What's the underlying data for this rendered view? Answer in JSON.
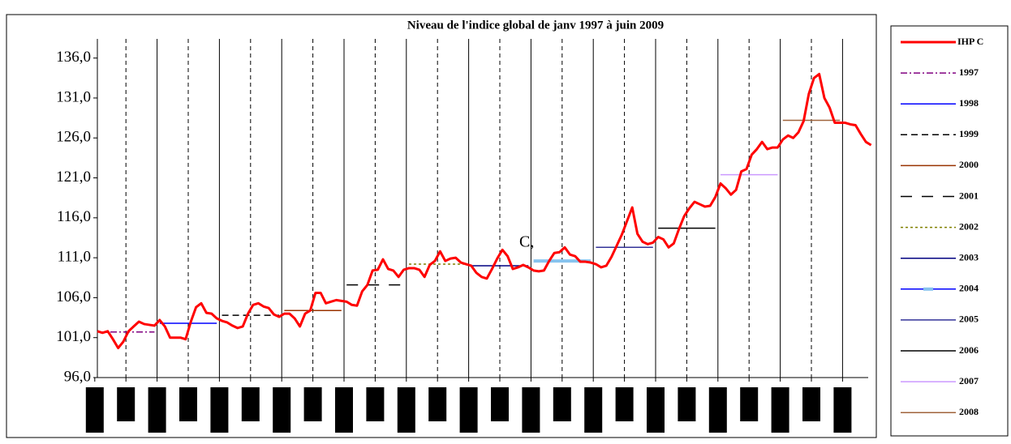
{
  "chart_data": {
    "type": "line",
    "title": "Niveau de l'indice global de janv 1997 à juin 2009",
    "annotation": "C,",
    "categories": [
      null,
      null,
      null,
      null,
      null,
      null,
      null,
      null,
      null,
      null,
      null,
      null,
      null,
      null,
      null,
      null,
      null,
      null,
      null,
      null,
      null,
      null,
      null,
      null,
      null,
      null,
      null,
      null,
      null,
      null,
      null,
      null,
      null,
      null,
      null,
      null,
      null,
      null,
      null,
      null,
      null,
      null,
      null,
      null,
      null,
      null,
      null,
      null,
      null,
      null,
      null,
      null,
      null,
      null,
      null,
      null,
      null,
      null,
      null,
      null,
      null,
      null,
      null,
      null,
      null,
      null,
      null,
      null,
      null,
      null,
      null,
      null,
      null,
      null,
      null,
      null,
      null,
      null,
      null,
      null,
      null,
      null,
      null,
      null,
      null,
      null,
      null,
      null,
      null,
      null,
      null,
      null,
      null,
      null,
      null,
      null,
      null,
      null,
      null,
      null,
      null,
      null,
      null,
      null,
      null,
      null,
      null,
      null,
      null,
      null,
      null,
      null,
      null,
      null,
      null,
      null,
      null,
      null,
      null,
      null,
      null,
      null,
      null,
      null,
      null,
      null,
      null,
      null,
      null,
      null,
      null,
      null,
      null,
      null,
      null,
      null,
      null,
      null,
      null,
      null,
      null,
      null,
      null,
      null,
      null,
      null,
      null,
      null,
      null,
      null
    ],
    "series": [
      {
        "name": "IHP C",
        "color": "#ff0000",
        "width": 3,
        "values": [
          101.8,
          101.6,
          101.8,
          100.8,
          99.7,
          100.5,
          101.8,
          102.4,
          103.0,
          102.7,
          102.6,
          102.5,
          103.2,
          102.4,
          101.0,
          101.0,
          101.0,
          100.8,
          103.0,
          104.8,
          105.3,
          104.1,
          104.0,
          103.4,
          103.1,
          102.9,
          102.5,
          102.2,
          102.4,
          104.0,
          105.1,
          105.3,
          104.9,
          104.7,
          103.9,
          103.6,
          104.0,
          104.0,
          103.4,
          102.4,
          104.0,
          104.4,
          106.6,
          106.6,
          105.3,
          105.5,
          105.7,
          105.6,
          105.5,
          105.1,
          105.0,
          106.8,
          107.6,
          109.4,
          109.5,
          110.8,
          109.6,
          109.4,
          108.6,
          109.5,
          109.7,
          109.7,
          109.5,
          108.6,
          110.1,
          110.6,
          111.8,
          110.6,
          110.9,
          111.0,
          110.4,
          110.2,
          110.0,
          109.1,
          108.6,
          108.4,
          109.6,
          110.9,
          112.0,
          111.2,
          109.6,
          109.8,
          110.1,
          109.8,
          109.4,
          109.3,
          109.4,
          110.6,
          111.6,
          111.7,
          112.3,
          111.4,
          111.2,
          110.5,
          110.5,
          110.4,
          110.2,
          109.8,
          110.0,
          111.1,
          112.5,
          113.9,
          115.6,
          117.3,
          114.0,
          113.0,
          112.7,
          112.9,
          113.6,
          113.3,
          112.3,
          112.8,
          114.6,
          116.2,
          117.2,
          118.0,
          117.7,
          117.4,
          117.5,
          118.6,
          120.3,
          119.7,
          118.9,
          119.5,
          121.8,
          122.1,
          123.9,
          124.6,
          125.5,
          124.6,
          124.8,
          124.8,
          125.8,
          126.3,
          126.0,
          126.7,
          128.1,
          131.5,
          133.5,
          134.0,
          131.0,
          129.8,
          127.9,
          127.9,
          127.9,
          127.7,
          127.6,
          126.5,
          125.5,
          125.1
        ]
      }
    ],
    "averages": [
      {
        "name": "1997",
        "color": "#800080",
        "dash": "8 3 2 3",
        "value": 101.7
      },
      {
        "name": "1998",
        "color": "#0000ff",
        "dash": "",
        "value": 102.8
      },
      {
        "name": "1999",
        "color": "#000000",
        "dash": "8 5",
        "value": 103.8
      },
      {
        "name": "2000",
        "color": "#993300",
        "dash": "",
        "value": 104.4
      },
      {
        "name": "2001",
        "color": "#000000",
        "dash": "14 12",
        "value": 107.6
      },
      {
        "name": "2002",
        "color": "#808000",
        "dash": "3 3",
        "value": 110.2
      },
      {
        "name": "2003",
        "color": "#000080",
        "dash": "",
        "value": 110.0
      },
      {
        "name": "2004",
        "color": "#87c3ee",
        "dash": "",
        "value": 110.6
      },
      {
        "name": "2005",
        "color": "#333399",
        "dash": "",
        "value": 112.3
      },
      {
        "name": "2006",
        "color": "#000000",
        "dash": "",
        "value": 114.7
      },
      {
        "name": "2007",
        "color": "#cc99ff",
        "dash": "",
        "value": 121.4
      },
      {
        "name": "2008",
        "color": "#a0643c",
        "dash": "",
        "value": 128.2
      }
    ],
    "ylim": [
      96,
      138.4
    ],
    "yticks": [
      {
        "value": 96,
        "label": "96,0"
      },
      {
        "value": 101,
        "label": "101,0"
      },
      {
        "value": 106,
        "label": "106,0"
      },
      {
        "value": 111,
        "label": "111,0"
      },
      {
        "value": 116,
        "label": "116,0"
      },
      {
        "value": 121,
        "label": "121,0"
      },
      {
        "value": 126,
        "label": "126,0"
      },
      {
        "value": 131,
        "label": "131,0"
      },
      {
        "value": 136,
        "label": "136,0"
      }
    ]
  }
}
